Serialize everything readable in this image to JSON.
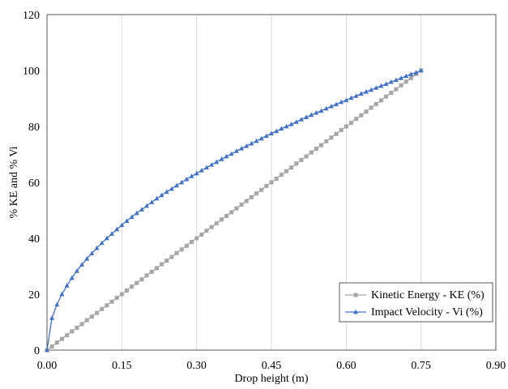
{
  "chart_data": {
    "type": "line",
    "xlabel": "Drop height (m)",
    "ylabel": "% KE and % Vi",
    "xlim": [
      0,
      0.9
    ],
    "ylim": [
      0,
      120
    ],
    "xticks": [
      "0.00",
      "0.15",
      "0.30",
      "0.45",
      "0.60",
      "0.75",
      "0.90"
    ],
    "yticks": [
      "0",
      "20",
      "40",
      "60",
      "80",
      "100",
      "120"
    ],
    "grid": "vertical",
    "legend_position": "bottom-right",
    "x": [
      0,
      0.01,
      0.02,
      0.03,
      0.04,
      0.05,
      0.06,
      0.07,
      0.08,
      0.09,
      0.1,
      0.11,
      0.12,
      0.13,
      0.14,
      0.15,
      0.16,
      0.17,
      0.18,
      0.19,
      0.2,
      0.21,
      0.22,
      0.23,
      0.24,
      0.25,
      0.26,
      0.27,
      0.28,
      0.29,
      0.3,
      0.31,
      0.32,
      0.33,
      0.34,
      0.35,
      0.36,
      0.37,
      0.38,
      0.39,
      0.4,
      0.41,
      0.42,
      0.43,
      0.44,
      0.45,
      0.46,
      0.47,
      0.48,
      0.49,
      0.5,
      0.51,
      0.52,
      0.53,
      0.54,
      0.55,
      0.56,
      0.57,
      0.58,
      0.59,
      0.6,
      0.61,
      0.62,
      0.63,
      0.64,
      0.65,
      0.66,
      0.67,
      0.68,
      0.69,
      0.7,
      0.71,
      0.72,
      0.73,
      0.74,
      0.75
    ],
    "series": [
      {
        "name": "Kinetic Energy - KE (%)",
        "color": "#a6a6a6",
        "marker": "square",
        "values": [
          0,
          1.3,
          2.7,
          4,
          5.3,
          6.7,
          8,
          9.3,
          10.7,
          12,
          13.3,
          14.7,
          16,
          17.3,
          18.7,
          20,
          21.3,
          22.7,
          24,
          25.3,
          26.7,
          28,
          29.3,
          30.7,
          32,
          33.3,
          34.7,
          36,
          37.3,
          38.7,
          40,
          41.3,
          42.7,
          44,
          45.3,
          46.7,
          48,
          49.3,
          50.7,
          52,
          53.3,
          54.7,
          56,
          57.3,
          58.7,
          60,
          61.3,
          62.7,
          64,
          65.3,
          66.7,
          68,
          69.3,
          70.7,
          72,
          73.3,
          74.7,
          76,
          77.3,
          78.7,
          80,
          81.3,
          82.7,
          84,
          85.3,
          86.7,
          88,
          89.3,
          90.7,
          92,
          93.3,
          94.7,
          96,
          97.3,
          98.7,
          100
        ]
      },
      {
        "name": "Impact Velocity - Vi (%)",
        "color": "#4472c4",
        "marker": "triangle",
        "values": [
          0,
          11.5,
          16.3,
          20,
          23.1,
          25.8,
          28.3,
          30.6,
          32.7,
          34.6,
          36.5,
          38.3,
          40,
          41.6,
          43.2,
          44.7,
          46.2,
          47.6,
          49,
          50.3,
          51.6,
          52.9,
          54.2,
          55.4,
          56.6,
          57.7,
          58.9,
          60,
          61.1,
          62.2,
          63.2,
          64.3,
          65.3,
          66.3,
          67.3,
          68.3,
          69.3,
          70.2,
          71.2,
          72.1,
          73,
          73.9,
          74.8,
          75.7,
          76.6,
          77.5,
          78.3,
          79.2,
          80,
          80.8,
          81.6,
          82.5,
          83.3,
          84.1,
          84.9,
          85.6,
          86.4,
          87.2,
          87.9,
          88.7,
          89.4,
          90.2,
          90.9,
          91.7,
          92.4,
          93.1,
          93.8,
          94.5,
          95.2,
          95.9,
          96.6,
          97.3,
          98,
          98.7,
          99.3,
          100
        ]
      }
    ]
  }
}
